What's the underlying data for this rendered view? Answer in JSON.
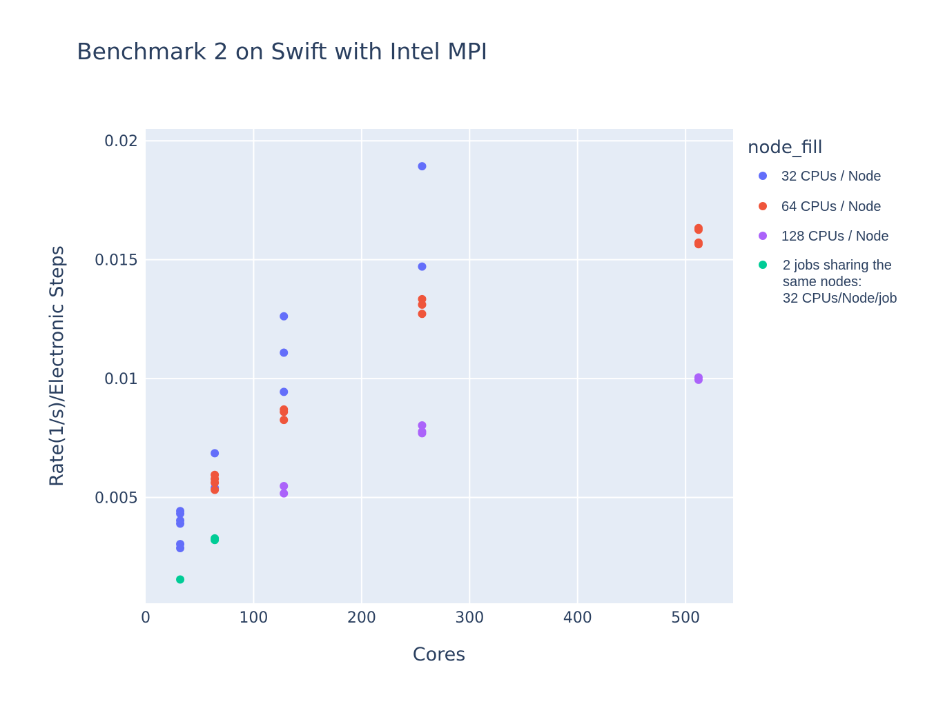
{
  "chart_data": {
    "type": "scatter",
    "title": "Benchmark 2 on Swift with Intel MPI",
    "xlabel": "Cores",
    "ylabel": "Rate(1/s)/Electronic Steps",
    "xlim": [
      0,
      544
    ],
    "ylim": [
      0.00055,
      0.0205
    ],
    "x_ticks": [
      0,
      100,
      200,
      300,
      400,
      500
    ],
    "x_tick_labels": [
      "0",
      "100",
      "200",
      "300",
      "400",
      "500"
    ],
    "y_ticks": [
      0.005,
      0.01,
      0.015,
      0.02
    ],
    "y_tick_labels": [
      "0.005",
      "0.01",
      "0.015",
      "0.02"
    ],
    "grid": true,
    "plot_background": "#E5ECF6",
    "grid_color": "#ffffff",
    "legend": {
      "title": "node_fill",
      "placement": "right"
    },
    "series": [
      {
        "name": "32 CPUs / Node",
        "color": "#636EFA",
        "points": [
          {
            "x": 32,
            "y": 0.00443
          },
          {
            "x": 32,
            "y": 0.00432
          },
          {
            "x": 32,
            "y": 0.00403
          },
          {
            "x": 32,
            "y": 0.0039
          },
          {
            "x": 32,
            "y": 0.00304
          },
          {
            "x": 32,
            "y": 0.00287
          },
          {
            "x": 64,
            "y": 0.00686
          },
          {
            "x": 64,
            "y": 0.0054
          },
          {
            "x": 128,
            "y": 0.01262
          },
          {
            "x": 128,
            "y": 0.01109
          },
          {
            "x": 128,
            "y": 0.00944
          },
          {
            "x": 256,
            "y": 0.01893
          },
          {
            "x": 256,
            "y": 0.01471
          }
        ]
      },
      {
        "name": "64 CPUs / Node",
        "color": "#EF553B",
        "points": [
          {
            "x": 64,
            "y": 0.00595
          },
          {
            "x": 64,
            "y": 0.00578
          },
          {
            "x": 64,
            "y": 0.00562
          },
          {
            "x": 64,
            "y": 0.00532
          },
          {
            "x": 128,
            "y": 0.0087
          },
          {
            "x": 128,
            "y": 0.0086
          },
          {
            "x": 128,
            "y": 0.00826
          },
          {
            "x": 256,
            "y": 0.01334
          },
          {
            "x": 256,
            "y": 0.01311
          },
          {
            "x": 256,
            "y": 0.01272
          },
          {
            "x": 512,
            "y": 0.01633
          },
          {
            "x": 512,
            "y": 0.01626
          },
          {
            "x": 512,
            "y": 0.01572
          },
          {
            "x": 512,
            "y": 0.01565
          }
        ]
      },
      {
        "name": "128 CPUs / Node",
        "color": "#AB63FA",
        "points": [
          {
            "x": 128,
            "y": 0.00548
          },
          {
            "x": 128,
            "y": 0.00517
          },
          {
            "x": 256,
            "y": 0.00803
          },
          {
            "x": 256,
            "y": 0.00777
          },
          {
            "x": 256,
            "y": 0.0077
          },
          {
            "x": 512,
            "y": 0.01005
          },
          {
            "x": 512,
            "y": 0.00995
          }
        ]
      },
      {
        "name": "2 jobs sharing the same nodes: 32 CPUs/Node/job",
        "name_lines": [
          "2 jobs sharing the",
          "same nodes:",
          "32 CPUs/Node/job"
        ],
        "color": "#00CC96",
        "points": [
          {
            "x": 64,
            "y": 0.00328
          },
          {
            "x": 64,
            "y": 0.00321
          },
          {
            "x": 32,
            "y": 0.00155
          }
        ]
      }
    ]
  }
}
